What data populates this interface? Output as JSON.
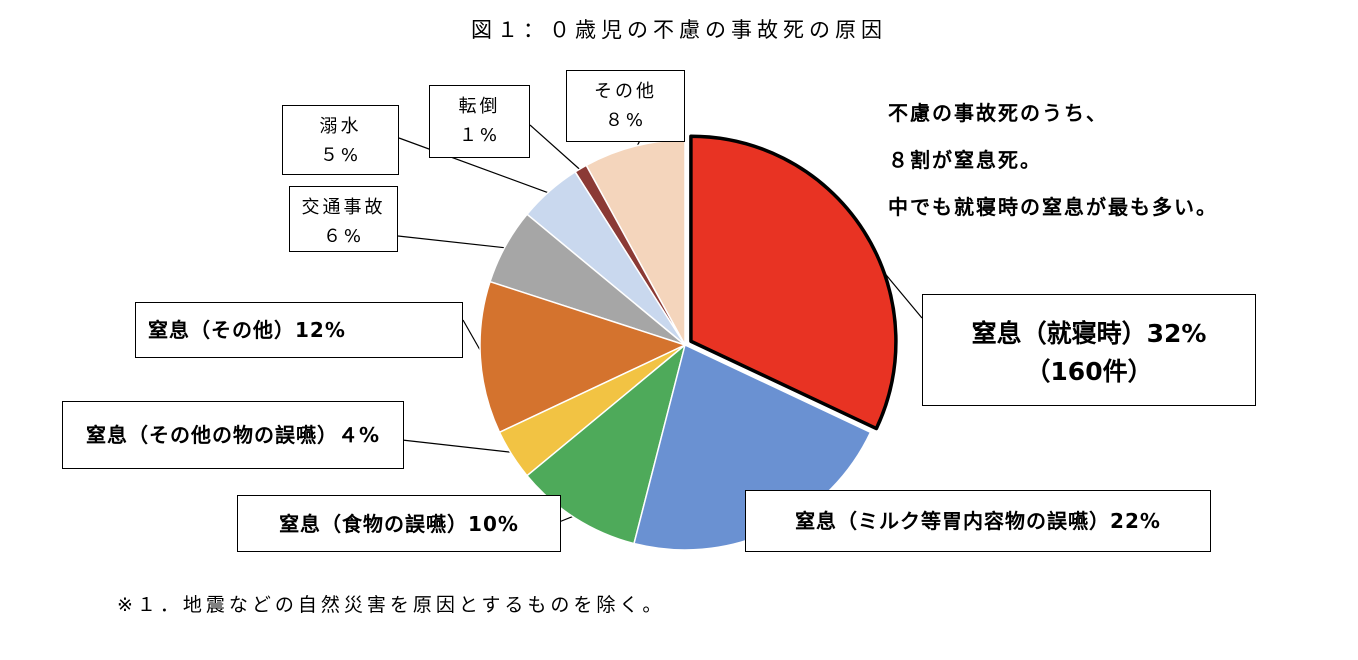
{
  "chart_data": {
    "type": "pie",
    "title": "図１：０歳児の不慮の事故死の原因",
    "slices": [
      {
        "label": "窒息（就寝時）32%",
        "sub": "（160件）",
        "value": 32,
        "color": "#E83323"
      },
      {
        "label": "窒息（ミルク等胃内容物の誤嚥）22%",
        "value": 22,
        "color": "#6A91D2"
      },
      {
        "label": "窒息（食物の誤嚥）10%",
        "value": 10,
        "color": "#4EAA5A"
      },
      {
        "label": "窒息（その他の物の誤嚥）４%",
        "value": 4,
        "color": "#F2C343"
      },
      {
        "label": "窒息（その他）12%",
        "value": 12,
        "color": "#D4732E"
      },
      {
        "label": "交通事故",
        "sub": "６%",
        "value": 6,
        "color": "#A6A6A6"
      },
      {
        "label": "溺水",
        "sub": "５%",
        "value": 5,
        "color": "#C9D8EE"
      },
      {
        "label": "転倒",
        "sub": "１%",
        "value": 1,
        "color": "#8B3A35"
      },
      {
        "label": "その他",
        "sub": "８%",
        "value": 8,
        "color": "#F4D5BC"
      }
    ],
    "highlight_index": 0
  },
  "summary": [
    "不慮の事故死のうち、",
    "８割が窒息死。",
    "中でも就寝時の窒息が最も多い。"
  ],
  "footnote": "※１．地震などの自然災害を原因とするものを除く。"
}
